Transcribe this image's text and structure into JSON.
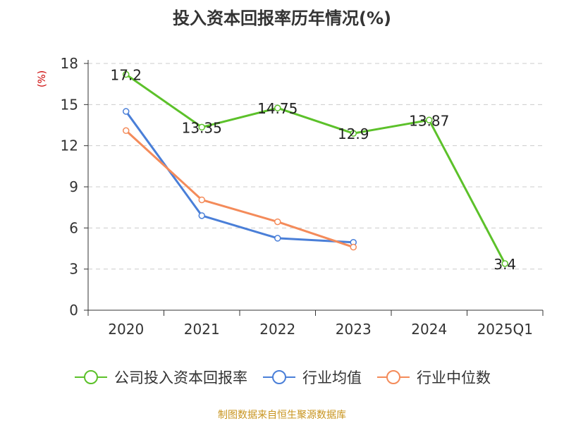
{
  "title": "投入资本回报率历年情况(%)",
  "unit_label": "(%)",
  "source": "制图数据来自恒生聚源数据库",
  "chart_data": {
    "type": "line",
    "title": "投入资本回报率历年情况(%)",
    "categories": [
      "2020",
      "2021",
      "2022",
      "2023",
      "2024",
      "2025Q1"
    ],
    "ylim": [
      0,
      18
    ],
    "yticks": [
      0,
      3,
      6,
      9,
      12,
      15,
      18
    ],
    "grid": true,
    "legend_position": "bottom",
    "series": [
      {
        "name": "公司投入资本回报率",
        "color": "#5cc12a",
        "values": [
          17.2,
          13.35,
          14.75,
          12.9,
          13.87,
          3.4
        ],
        "labels": [
          "17.2",
          "13.35",
          "14.75",
          "12.9",
          "13.87",
          "3.4"
        ]
      },
      {
        "name": "行业均值",
        "color": "#4a7fd8",
        "values": [
          14.5,
          6.9,
          5.25,
          4.95,
          null,
          null
        ]
      },
      {
        "name": "行业中位数",
        "color": "#f48b5a",
        "values": [
          13.1,
          8.05,
          6.45,
          4.6,
          null,
          null
        ]
      }
    ]
  }
}
